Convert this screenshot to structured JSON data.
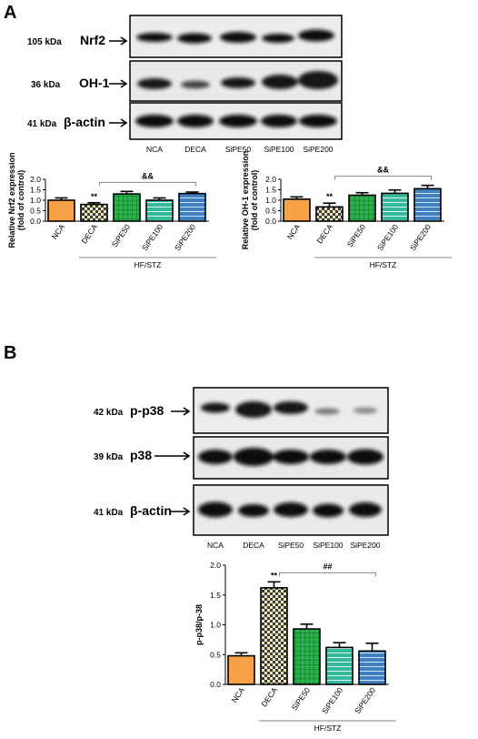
{
  "panel_a": {
    "letter": "A",
    "blots": [
      {
        "kda": "105 kDa",
        "protein": "Nrf2"
      },
      {
        "kda": "36 kDa",
        "protein": "OH-1"
      },
      {
        "kda": "41 kDa",
        "protein": "β-actin"
      }
    ],
    "lanes": [
      "NCA",
      "DECA",
      "SiPE50",
      "SiPE100",
      "SiPE200"
    ]
  },
  "panel_b": {
    "letter": "B",
    "blots": [
      {
        "kda": "42 kDa",
        "protein": "p-p38"
      },
      {
        "kda": "39 kDa",
        "protein": "p38"
      },
      {
        "kda": "41 kDa",
        "protein": "β-actin"
      }
    ],
    "lanes": [
      "NCA",
      "DECA",
      "SiPE50",
      "SiPE100",
      "SiPE200"
    ]
  },
  "colors": {
    "NCA": "#f7a046",
    "DECA": "#e8dfb0",
    "SiPE50": "#2bb24c",
    "SiPE100": "#2fb59a",
    "SiPE200": "#3f80c0"
  },
  "chart_data": [
    {
      "type": "bar",
      "categories": [
        "NCA",
        "DECA",
        "SiPE50",
        "SiPE100",
        "SiPE200"
      ],
      "values": [
        1.0,
        0.8,
        1.3,
        1.0,
        1.32
      ],
      "errors": [
        0.11,
        0.08,
        0.12,
        0.11,
        0.07
      ],
      "ylabel": "Relative Nrf2 expression\n(fold of control)",
      "ylim": [
        0,
        2.0
      ],
      "yticks": [
        "0.0",
        "0.5",
        "1.0",
        "1.5",
        "2.0"
      ],
      "group_label": "HF/STZ",
      "annotations": [
        {
          "text": "**",
          "category": "DECA"
        },
        {
          "text": "&&",
          "bracket": [
            "DECA",
            "SiPE200"
          ]
        }
      ]
    },
    {
      "type": "bar",
      "categories": [
        "NCA",
        "DECA",
        "SiPE50",
        "SiPE100",
        "SiPE200"
      ],
      "values": [
        1.05,
        0.68,
        1.24,
        1.33,
        1.55
      ],
      "errors": [
        0.11,
        0.18,
        0.12,
        0.16,
        0.16
      ],
      "ylabel": "Relative OH-1 expression\n(fold of control)",
      "ylim": [
        0,
        2.0
      ],
      "yticks": [
        "0.0",
        "0.5",
        "1.0",
        "1.5",
        "2.0"
      ],
      "group_label": "HF/STZ",
      "annotations": [
        {
          "text": "**",
          "category": "DECA"
        },
        {
          "text": "&&",
          "bracket": [
            "DECA",
            "SiPE200"
          ]
        }
      ]
    },
    {
      "type": "bar",
      "categories": [
        "NCA",
        "DECA",
        "SiPE50",
        "SiPE100",
        "SiPE200"
      ],
      "values": [
        0.48,
        1.62,
        0.93,
        0.62,
        0.56
      ],
      "errors": [
        0.05,
        0.1,
        0.08,
        0.08,
        0.13
      ],
      "ylabel": "p-p38/p-38",
      "ylim": [
        0,
        2.0
      ],
      "yticks": [
        "0.0",
        "0.5",
        "1.0",
        "1.5",
        "2.0"
      ],
      "group_label": "HF/STZ",
      "annotations": [
        {
          "text": "**",
          "category": "DECA"
        },
        {
          "text": "##",
          "bracket": [
            "DECA",
            "SiPE200"
          ]
        }
      ]
    }
  ]
}
